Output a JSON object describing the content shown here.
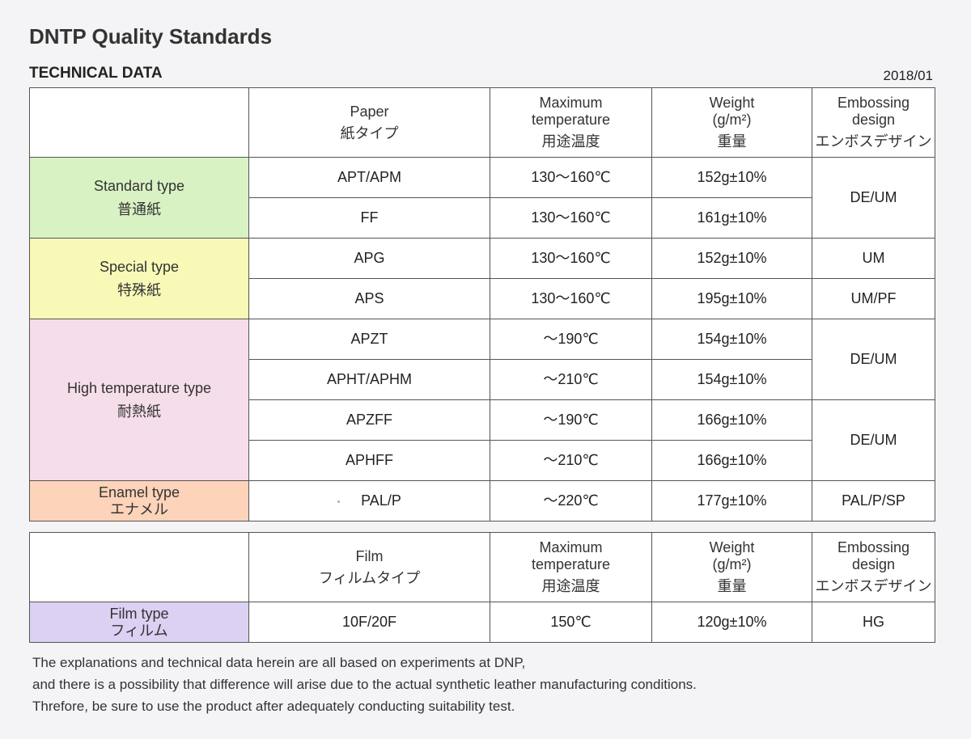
{
  "header": {
    "title": "DNTP Quality Standards",
    "subtitle": "TECHNICAL DATA",
    "date": "2018/01"
  },
  "paper_table": {
    "columns": {
      "paper": {
        "en": "Paper",
        "jp": "紙タイプ"
      },
      "temp": {
        "en1": "Maximum",
        "en2": "temperature",
        "jp": "用途温度"
      },
      "weight": {
        "en1": "Weight",
        "en2": "(g/m²)",
        "jp": "重量"
      },
      "emboss": {
        "en1": "Embossing",
        "en2": "design",
        "jp": "エンボスデザイン"
      }
    },
    "categories": {
      "standard": {
        "en": "Standard type",
        "jp": "普通紙"
      },
      "special": {
        "en": "Special type",
        "jp": "特殊紙"
      },
      "hightemp": {
        "en": "High temperature type",
        "jp": "耐熱紙"
      },
      "enamel": {
        "en": "Enamel type",
        "jp": "エナメル"
      }
    },
    "rows": [
      {
        "paper": "APT/APM",
        "temp": "130〜160℃",
        "weight": "152g±10%"
      },
      {
        "paper": "FF",
        "temp": "130〜160℃",
        "weight": "161g±10%"
      },
      {
        "paper": "APG",
        "temp": "130〜160℃",
        "weight": "152g±10%"
      },
      {
        "paper": "APS",
        "temp": "130〜160℃",
        "weight": "195g±10%"
      },
      {
        "paper": "APZT",
        "temp": "〜190℃",
        "weight": "154g±10%"
      },
      {
        "paper": "APHT/APHM",
        "temp": "〜210℃",
        "weight": "154g±10%"
      },
      {
        "paper": "APZFF",
        "temp": "〜190℃",
        "weight": "166g±10%"
      },
      {
        "paper": "APHFF",
        "temp": "〜210℃",
        "weight": "166g±10%"
      },
      {
        "paper": "PAL/P",
        "temp": "〜220℃",
        "weight": "177g±10%"
      }
    ],
    "emboss": {
      "standard": "DE/UM",
      "apg": "UM",
      "aps": "UM/PF",
      "hightemp_a": "DE/UM",
      "hightemp_b": "DE/UM",
      "enamel": "PAL/P/SP"
    }
  },
  "film_table": {
    "columns": {
      "film": {
        "en": "Film",
        "jp": "フィルムタイプ"
      },
      "temp": {
        "en1": "Maximum",
        "en2": "temperature",
        "jp": "用途温度"
      },
      "weight": {
        "en1": "Weight",
        "en2": "(g/m²)",
        "jp": "重量"
      },
      "emboss": {
        "en1": "Embossing",
        "en2": "design",
        "jp": "エンボスデザイン"
      }
    },
    "category": {
      "en": "Film type",
      "jp": "フィルム"
    },
    "row": {
      "film": "10F/20F",
      "temp": "150℃",
      "weight": "120g±10%",
      "emboss": "HG"
    }
  },
  "footer": {
    "line1": "The explanations and technical data herein are all based on experiments at DNP,",
    "line2": "and there is a possibility that difference will arise due to the actual synthetic leather manufacturing conditions.",
    "line3": "Threfore, be sure to use the product after adequately conducting suitability test."
  },
  "colors": {
    "standard": "#d9f2c4",
    "special": "#f8f9b7",
    "hightemp": "#f5dde9",
    "enamel": "#fdd3b9",
    "film": "#dcd0f3"
  }
}
